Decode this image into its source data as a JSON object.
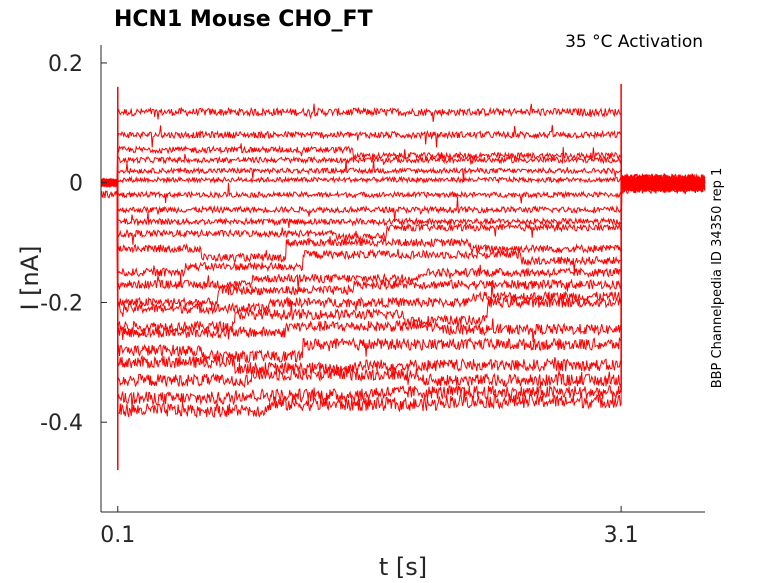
{
  "chart_data": {
    "type": "line",
    "title": "HCN1  Mouse  CHO_FT",
    "annotation": "35 °C  Activation",
    "side_label": "BBP Channelpedia ID 34350 rep 1",
    "xlabel": "t [s]",
    "ylabel": "I [nA]",
    "xlim": [
      0.0,
      3.6
    ],
    "ylim": [
      -0.55,
      0.23
    ],
    "x_ticks": [
      0.1,
      3.1
    ],
    "x_tick_labels": [
      "0.1",
      "3.1"
    ],
    "y_ticks": [
      0.2,
      0,
      -0.2,
      -0.4
    ],
    "y_tick_labels": [
      "0.2",
      "0",
      "-0.2",
      "-0.4"
    ],
    "grid": false,
    "legend": "none",
    "line_color": "#ff0000",
    "step_start_s": 0.1,
    "step_end_s": 3.1,
    "traces": [
      {
        "baseline_nA": 0.0,
        "levels_nA": [
          [
            0.1,
            0.118
          ],
          [
            3.1,
            0.118
          ]
        ]
      },
      {
        "baseline_nA": 0.0,
        "levels_nA": [
          [
            0.1,
            0.08
          ],
          [
            3.1,
            0.078
          ]
        ]
      },
      {
        "baseline_nA": 0.0,
        "levels_nA": [
          [
            0.1,
            0.055
          ],
          [
            1.5,
            0.045
          ],
          [
            3.1,
            0.045
          ]
        ]
      },
      {
        "baseline_nA": 0.0,
        "levels_nA": [
          [
            0.1,
            0.038
          ],
          [
            3.1,
            0.04
          ]
        ]
      },
      {
        "baseline_nA": 0.0,
        "levels_nA": [
          [
            0.1,
            0.02
          ],
          [
            3.1,
            0.025
          ]
        ]
      },
      {
        "baseline_nA": 0.0,
        "levels_nA": [
          [
            0.1,
            0.005
          ],
          [
            3.1,
            0.012
          ]
        ]
      },
      {
        "baseline_nA": 0.0,
        "levels_nA": [
          [
            0.1,
            -0.02
          ],
          [
            3.1,
            -0.015
          ]
        ]
      },
      {
        "baseline_nA": 0.0,
        "levels_nA": [
          [
            0.1,
            -0.045
          ],
          [
            3.1,
            -0.05
          ]
        ]
      },
      {
        "baseline_nA": 0.0,
        "levels_nA": [
          [
            0.1,
            -0.065
          ],
          [
            3.1,
            -0.06
          ]
        ]
      },
      {
        "baseline_nA": -0.02,
        "levels_nA": [
          [
            0.1,
            -0.085
          ],
          [
            1.4,
            -0.09
          ],
          [
            1.7,
            -0.075
          ],
          [
            3.1,
            -0.07
          ]
        ]
      },
      {
        "baseline_nA": 0.0,
        "levels_nA": [
          [
            0.1,
            -0.11
          ],
          [
            0.6,
            -0.125
          ],
          [
            1.1,
            -0.1
          ],
          [
            2.2,
            -0.11
          ],
          [
            3.1,
            -0.105
          ]
        ]
      },
      {
        "baseline_nA": 0.0,
        "levels_nA": [
          [
            0.1,
            -0.15
          ],
          [
            0.5,
            -0.14
          ],
          [
            1.2,
            -0.12
          ],
          [
            2.5,
            -0.13
          ],
          [
            3.1,
            -0.125
          ]
        ]
      },
      {
        "baseline_nA": 0.0,
        "levels_nA": [
          [
            0.1,
            -0.17
          ],
          [
            0.9,
            -0.16
          ],
          [
            1.9,
            -0.15
          ],
          [
            3.1,
            -0.155
          ]
        ]
      },
      {
        "baseline_nA": 0.0,
        "levels_nA": [
          [
            0.1,
            -0.2
          ],
          [
            0.7,
            -0.18
          ],
          [
            1.5,
            -0.17
          ],
          [
            3.1,
            -0.16
          ]
        ]
      },
      {
        "baseline_nA": 0.0,
        "levels_nA": [
          [
            0.1,
            -0.21
          ],
          [
            1.0,
            -0.2
          ],
          [
            2.2,
            -0.19
          ],
          [
            3.1,
            -0.19
          ]
        ]
      },
      {
        "baseline_nA": 0.0,
        "levels_nA": [
          [
            0.1,
            -0.24
          ],
          [
            0.8,
            -0.22
          ],
          [
            1.8,
            -0.23
          ],
          [
            2.3,
            -0.2
          ],
          [
            3.1,
            -0.21
          ]
        ]
      },
      {
        "baseline_nA": 0.0,
        "levels_nA": [
          [
            0.1,
            -0.25
          ],
          [
            1.1,
            -0.24
          ],
          [
            2.0,
            -0.245
          ],
          [
            3.1,
            -0.25
          ]
        ]
      },
      {
        "baseline_nA": 0.0,
        "levels_nA": [
          [
            0.1,
            -0.28
          ],
          [
            0.6,
            -0.29
          ],
          [
            1.2,
            -0.27
          ],
          [
            3.1,
            -0.28
          ]
        ]
      },
      {
        "baseline_nA": 0.0,
        "levels_nA": [
          [
            0.1,
            -0.3
          ],
          [
            0.8,
            -0.31
          ],
          [
            1.5,
            -0.305
          ],
          [
            3.1,
            -0.3
          ]
        ]
      },
      {
        "baseline_nA": 0.0,
        "levels_nA": [
          [
            0.1,
            -0.33
          ],
          [
            0.9,
            -0.32
          ],
          [
            1.9,
            -0.33
          ],
          [
            3.1,
            -0.325
          ]
        ]
      },
      {
        "baseline_nA": 0.0,
        "levels_nA": [
          [
            0.1,
            -0.36
          ],
          [
            0.8,
            -0.355
          ],
          [
            1.6,
            -0.35
          ],
          [
            3.1,
            -0.345
          ]
        ]
      },
      {
        "baseline_nA": 0.0,
        "levels_nA": [
          [
            0.1,
            -0.38
          ],
          [
            1.0,
            -0.37
          ],
          [
            2.0,
            -0.365
          ],
          [
            3.1,
            -0.36
          ]
        ]
      }
    ]
  }
}
